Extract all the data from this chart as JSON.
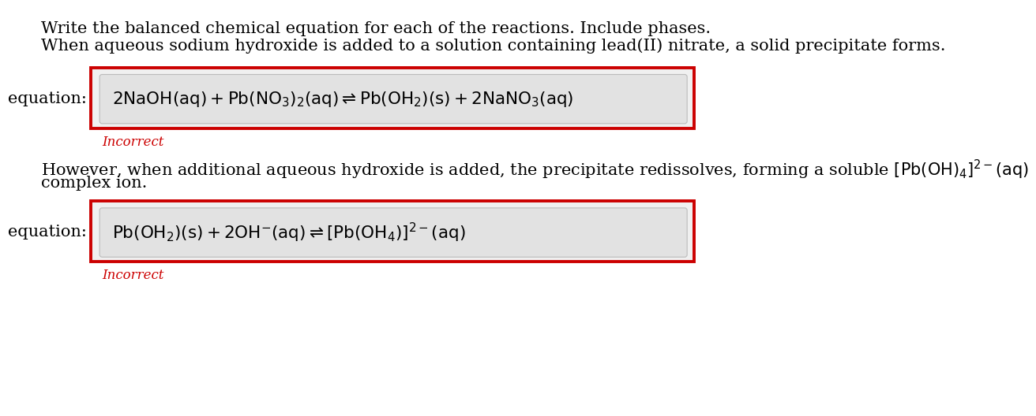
{
  "background_color": "#ffffff",
  "title_line1": "Write the balanced chemical equation for each of the reactions. Include phases.",
  "title_line2": "When aqueous sodium hydroxide is added to a solution containing lead(II) nitrate, a solid precipitate forms.",
  "paragraph2_line1": "However, when additional aqueous hydroxide is added, the precipitate redissolves, forming a soluble $\\mathrm{[Pb(OH)_4]^{2-}(aq)}$",
  "paragraph2_line2": "complex ion.",
  "eq_label": "equation:",
  "incorrect_text": "Incorrect",
  "incorrect_color": "#cc0000",
  "box_border_color": "#cc0000",
  "box_fill_color": "#f0f0f0",
  "input_fill_color": "#e2e2e2",
  "eq1": "$\\mathrm{2NaOH(aq)+Pb(NO_3)_2(aq) \\rightleftharpoons Pb(OH_2)(s) + 2NaNO_3(aq)}$",
  "eq2": "$\\mathrm{Pb(OH_2)(s) + 2OH^{-}(aq) \\rightleftharpoons [Pb(OH_4)]^{2-}(aq)}$",
  "body_fontsize": 15,
  "eq_fontsize": 15.5,
  "label_fontsize": 15,
  "incorrect_fontsize": 12
}
